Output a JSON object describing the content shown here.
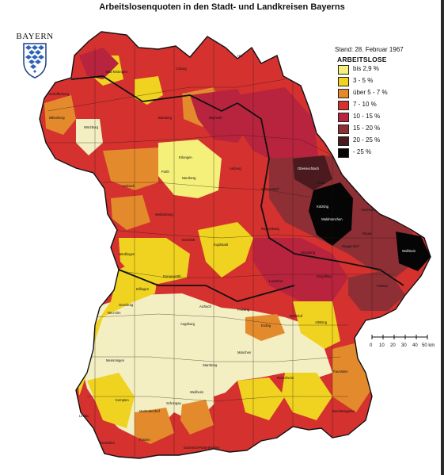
{
  "title": "Arbeitslosenquoten in den Stadt- und Landkreisen Bayerns",
  "logo_text": "BAYERN",
  "date": "Stand: 28. Februar 1967",
  "legend": {
    "title": "ARBEITSLOSE",
    "items": [
      {
        "label": "bis  2,9 %",
        "color": "#f5f07a"
      },
      {
        "label": "3  -  5 %",
        "color": "#efd320"
      },
      {
        "label": "über  5  -  7 %",
        "color": "#e38a2c"
      },
      {
        "label": "7  -  10 %",
        "color": "#d4312f"
      },
      {
        "label": "10  -  15 %",
        "color": "#b8233e"
      },
      {
        "label": "15  -  20 %",
        "color": "#8e2f35"
      },
      {
        "label": "20  -  25 %",
        "color": "#4a1a1f"
      },
      {
        "label": "-  25 %",
        "color": "#050505"
      }
    ]
  },
  "pale_color": "#f3efc2",
  "scale_labels": [
    "0",
    "10",
    "20",
    "30",
    "40",
    "50 km"
  ],
  "district_labels": [
    "Aschaffenburg",
    "Miltenberg",
    "Würzburg",
    "Bad Kissingen",
    "Coburg",
    "Hof",
    "Bamberg",
    "Bayreuth",
    "Erlangen",
    "Nürnberg",
    "Fürth",
    "Ansbach",
    "Weißenburg",
    "Eichstätt",
    "Ingolstadt",
    "Amberg",
    "Schwandorf",
    "Regensburg",
    "Cham",
    "Straubing",
    "Deggendorf",
    "Passau",
    "Wolfstein",
    "Landshut",
    "Dingolfing",
    "Augsburg",
    "Aichach",
    "Freising",
    "Erding",
    "München",
    "Starnberg",
    "Rosenheim",
    "Traunstein",
    "Berchtesgaden",
    "Weilheim",
    "Kempten",
    "Lindau",
    "Memmingen",
    "Neu-Ulm",
    "Günzburg",
    "Dillingen",
    "Donauwörth",
    "Nördlingen",
    "Viechtach",
    "Kötzting",
    "Regen",
    "Oberviechtach",
    "Waldmünchen",
    "Altötting",
    "Mühldorf",
    "Garmisch-Partenkirchen",
    "Sonthofen",
    "Marktoberdorf",
    "Füssen",
    "Schongau"
  ]
}
